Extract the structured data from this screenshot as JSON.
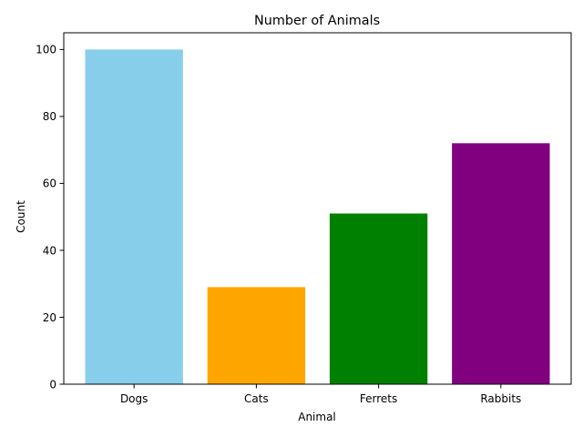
{
  "chart_data": {
    "type": "bar",
    "title": "Number of Animals",
    "xlabel": "Animal",
    "ylabel": "Count",
    "categories": [
      "Dogs",
      "Cats",
      "Ferrets",
      "Rabbits"
    ],
    "values": [
      100,
      29,
      51,
      72
    ],
    "colors": [
      "#87ceeb",
      "#ffa500",
      "#008000",
      "#800080"
    ],
    "ylim": [
      0,
      105
    ],
    "yticks": [
      0,
      20,
      40,
      60,
      80,
      100
    ],
    "grid": false,
    "legend": "none"
  }
}
